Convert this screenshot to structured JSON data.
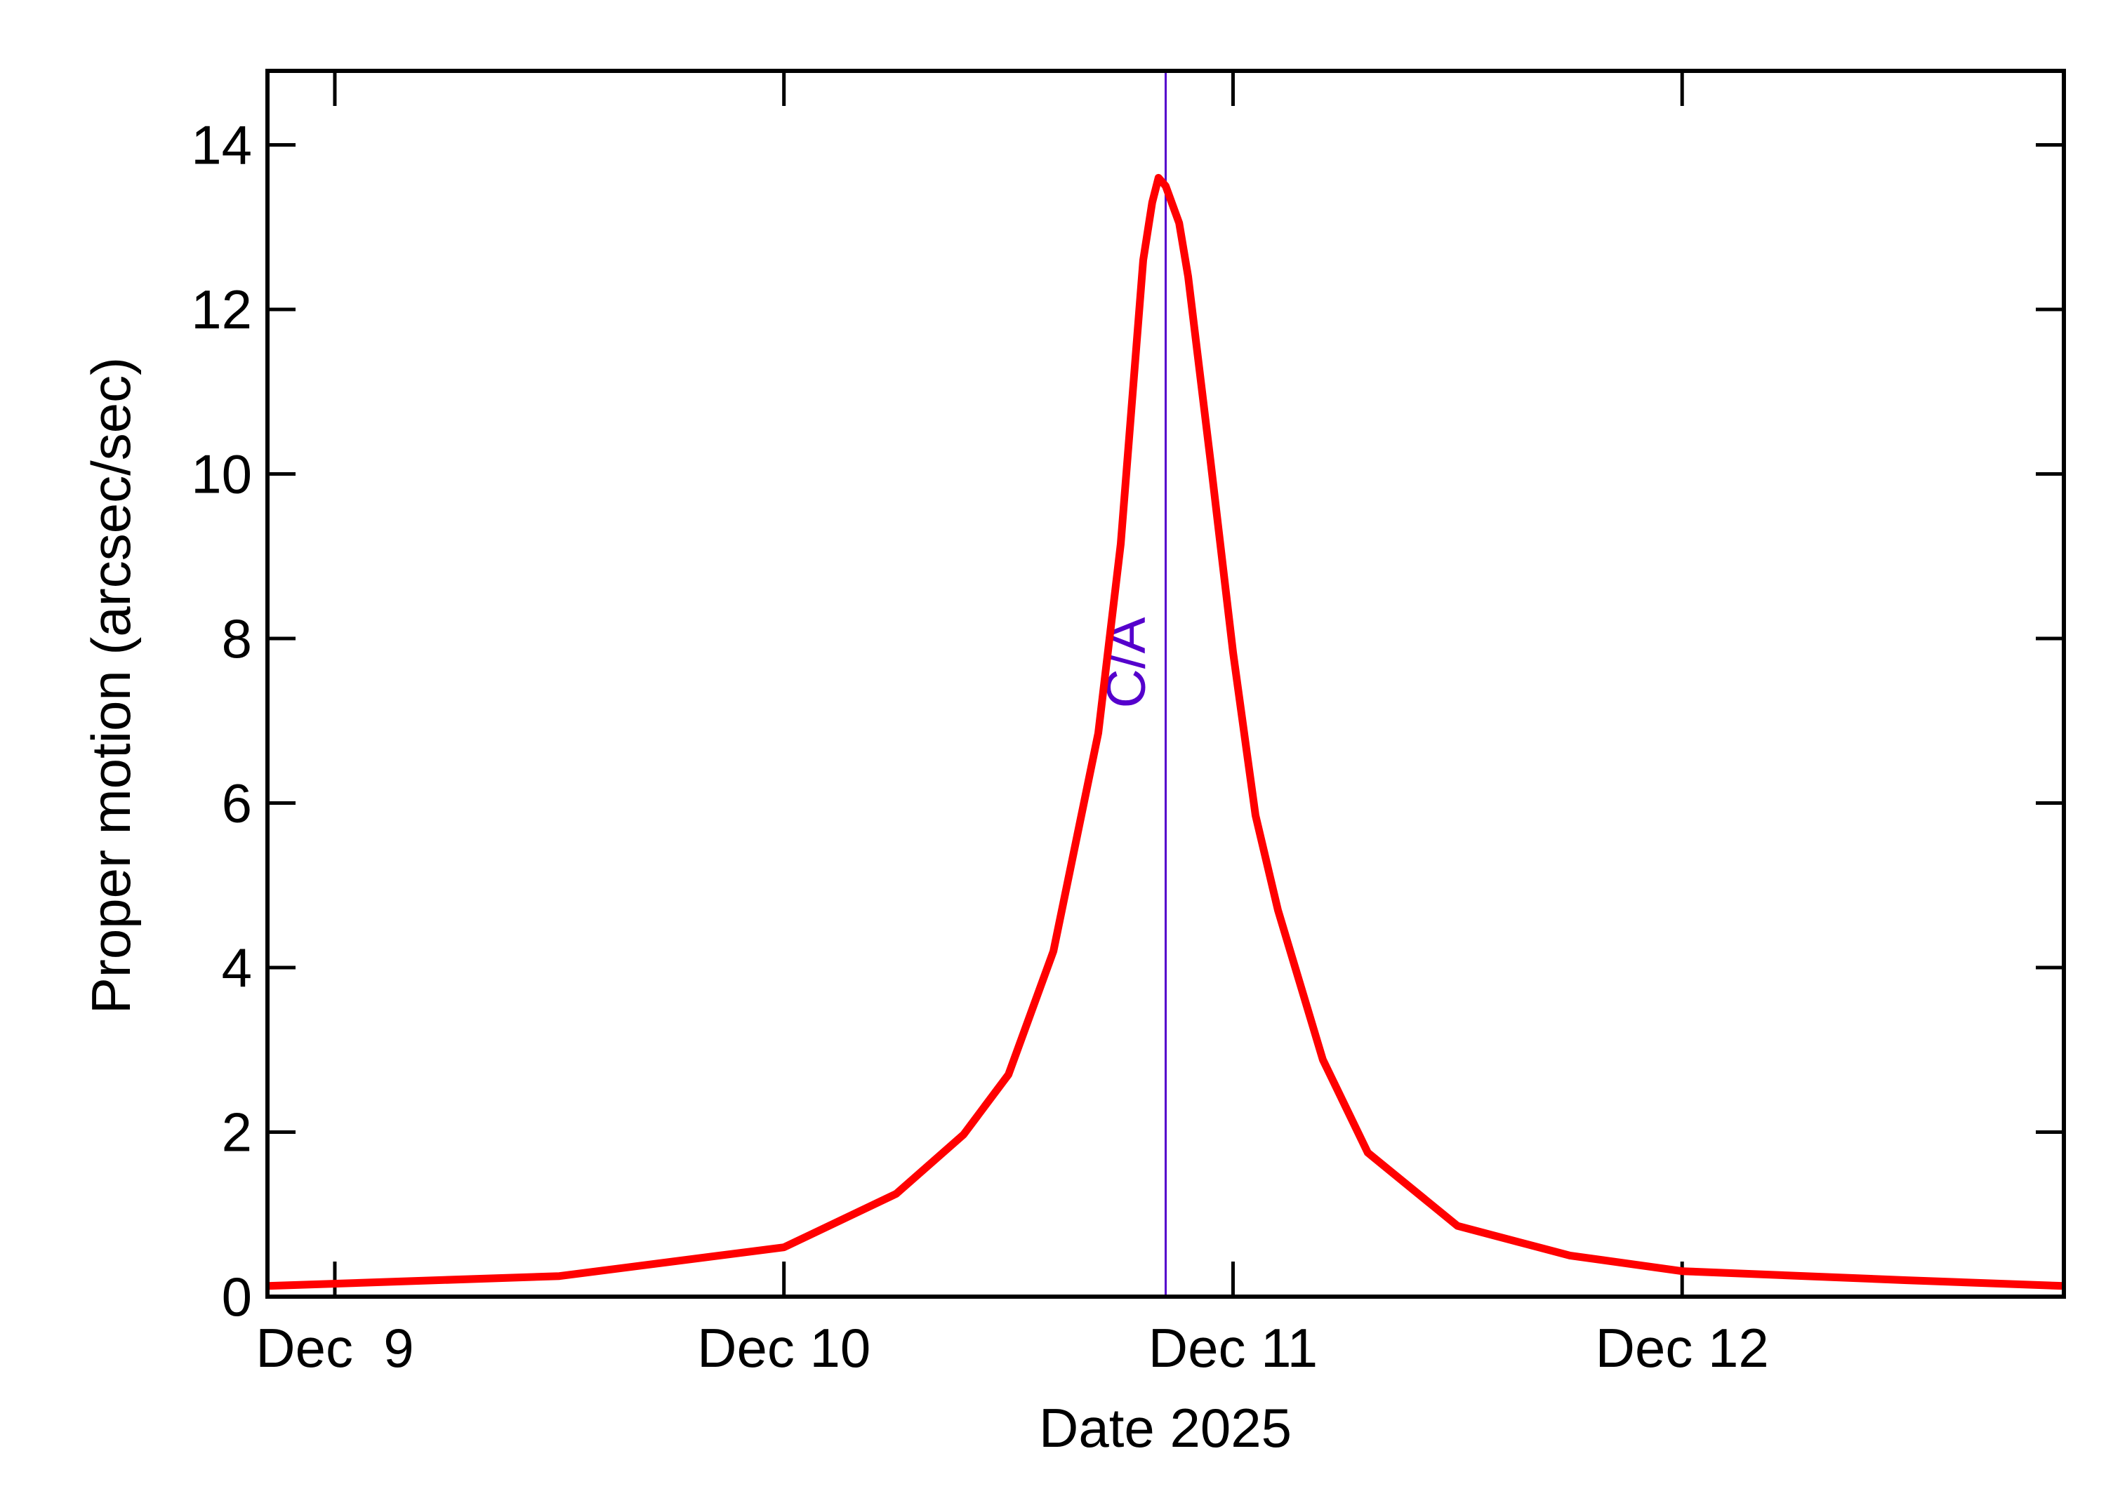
{
  "chart_data": {
    "type": "line",
    "xlabel": "Date 2025",
    "ylabel": "Proper motion (arcsec/sec)",
    "x": [
      8.85,
      9.5,
      10.0,
      10.25,
      10.4,
      10.5,
      10.6,
      10.7,
      10.75,
      10.8,
      10.82,
      10.834,
      10.85,
      10.88,
      10.9,
      10.95,
      11.0,
      11.05,
      11.1,
      11.2,
      11.3,
      11.5,
      11.75,
      12.0,
      12.5,
      12.85
    ],
    "values": [
      0.13,
      0.25,
      0.6,
      1.25,
      1.97,
      2.7,
      4.2,
      6.85,
      9.15,
      12.6,
      13.3,
      13.6,
      13.5,
      13.05,
      12.4,
      10.15,
      7.83,
      5.85,
      4.7,
      2.88,
      1.75,
      0.86,
      0.5,
      0.31,
      0.2,
      0.13
    ],
    "color": "#ff0000",
    "xlim": [
      8.85,
      12.85
    ],
    "xticks": [
      {
        "value": 9,
        "label": "Dec  9"
      },
      {
        "value": 10,
        "label": "Dec 10"
      },
      {
        "value": 11,
        "label": "Dec 11"
      },
      {
        "value": 12,
        "label": "Dec 12"
      }
    ],
    "ylim": [
      0,
      14.9
    ],
    "yticks": [
      0,
      2,
      4,
      6,
      8,
      10,
      12,
      14
    ],
    "annotations": [
      {
        "x": 10.85,
        "text": "C/A",
        "color": "#5500cc"
      }
    ]
  }
}
